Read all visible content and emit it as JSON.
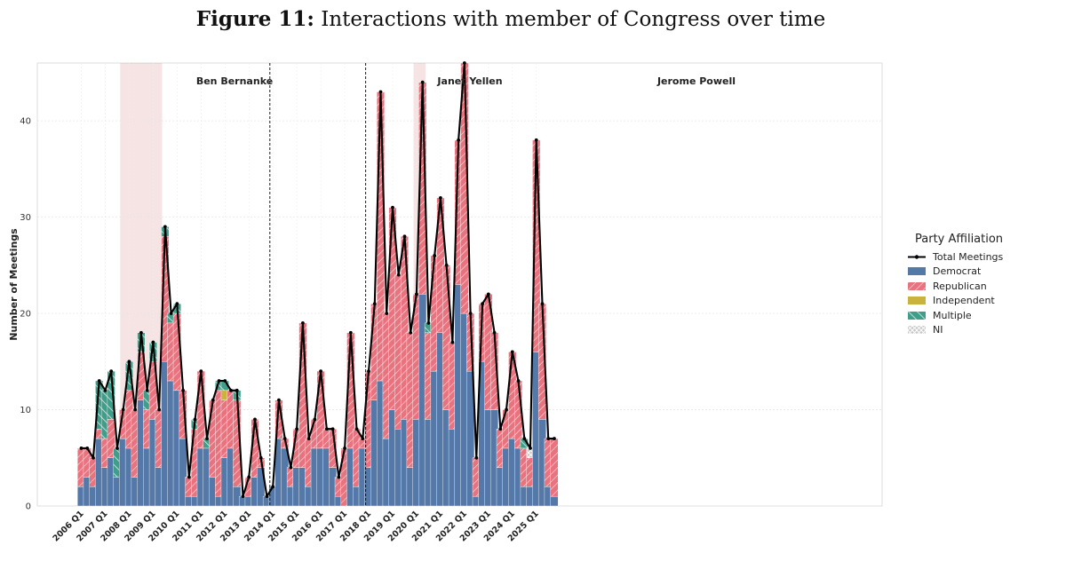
{
  "figure": {
    "label": "Figure 11:",
    "title": "Interactions with member of Congress over time"
  },
  "chart_data": {
    "type": "bar",
    "stacked": true,
    "ylabel": "Number of Meetings",
    "xlabel": "",
    "ylim": [
      0,
      46
    ],
    "yticks": [
      0,
      10,
      20,
      30,
      40
    ],
    "grid": true,
    "legend_position": "right",
    "x_tick_labels": [
      "2006 Q1",
      "2007 Q1",
      "2008 Q1",
      "2009 Q1",
      "2010 Q1",
      "2011 Q1",
      "2012 Q1",
      "2013 Q1",
      "2014 Q1",
      "2015 Q1",
      "2016 Q1",
      "2017 Q1",
      "2018 Q1",
      "2019 Q1",
      "2020 Q1",
      "2021 Q1",
      "2022 Q1",
      "2023 Q1",
      "2024 Q1",
      "2025 Q1"
    ],
    "first_quarter": "2006 Q1",
    "chairs": [
      {
        "name": "Ben Bernanke",
        "start": "2006 Q1"
      },
      {
        "name": "Janet Yellen",
        "start": "2014 Q1"
      },
      {
        "name": "Jerome Powell",
        "start": "2018 Q1"
      }
    ],
    "shaded_periods": [
      {
        "start": "2007 Q4",
        "end": "2009 Q2"
      },
      {
        "start": "2020 Q1",
        "end": "2020 Q2"
      }
    ],
    "series": [
      {
        "name": "Democrat",
        "color": "#5479a8",
        "values": [
          2,
          3,
          2,
          7,
          4,
          5,
          3,
          7,
          6,
          3,
          11,
          6,
          9,
          4,
          15,
          13,
          12,
          7,
          1,
          1,
          6,
          6,
          3,
          1,
          5,
          6,
          2,
          1,
          1,
          3,
          4,
          1,
          2,
          7,
          6,
          2,
          4,
          4,
          2,
          6,
          6,
          6,
          4,
          1,
          0,
          6,
          2,
          6,
          4,
          11,
          13,
          7,
          10,
          8,
          9,
          4,
          9,
          22,
          9,
          14,
          18,
          10,
          8,
          23,
          20,
          14,
          1,
          15,
          10,
          10,
          4,
          6,
          7,
          6,
          2,
          2,
          16,
          9,
          2,
          1
        ]
      },
      {
        "name": "Republican",
        "color": "#e8727e",
        "values": [
          4,
          3,
          3,
          1,
          3,
          4,
          0,
          3,
          6,
          7,
          5,
          4,
          6,
          6,
          13,
          6,
          8,
          5,
          2,
          7,
          8,
          0,
          8,
          11,
          6,
          6,
          9,
          0,
          2,
          6,
          1,
          0,
          0,
          4,
          1,
          2,
          4,
          15,
          5,
          3,
          8,
          2,
          4,
          2,
          6,
          12,
          6,
          1,
          10,
          10,
          30,
          13,
          21,
          16,
          19,
          14,
          13,
          22,
          9,
          12,
          14,
          15,
          9,
          15,
          26,
          6,
          4,
          6,
          12,
          8,
          4,
          4,
          9,
          7,
          4,
          3,
          22,
          12,
          5,
          6
        ]
      },
      {
        "name": "Independent",
        "color": "#c9b33e",
        "values": [
          0,
          0,
          0,
          0,
          0,
          0,
          0,
          0,
          0,
          0,
          0,
          0,
          0,
          0,
          0,
          0,
          0,
          0,
          0,
          0,
          0,
          0,
          0,
          0,
          1,
          0,
          0,
          0,
          0,
          0,
          0,
          0,
          0,
          0,
          0,
          0,
          0,
          0,
          0,
          0,
          0,
          0,
          0,
          0,
          0,
          0,
          0,
          0,
          0,
          0,
          0,
          0,
          0,
          0,
          0,
          0,
          0,
          0,
          0,
          0,
          0,
          0,
          0,
          0,
          0,
          0,
          0,
          0,
          0,
          0,
          0,
          0,
          0,
          0,
          0,
          0,
          0,
          0,
          0,
          0
        ]
      },
      {
        "name": "Multiple",
        "color": "#3f9e8a",
        "values": [
          0,
          0,
          0,
          5,
          5,
          5,
          3,
          0,
          3,
          0,
          2,
          2,
          2,
          0,
          1,
          1,
          1,
          0,
          0,
          1,
          0,
          1,
          0,
          1,
          1,
          0,
          1,
          0,
          0,
          0,
          0,
          0,
          0,
          0,
          0,
          0,
          0,
          0,
          0,
          0,
          0,
          0,
          0,
          0,
          0,
          0,
          0,
          0,
          0,
          0,
          0,
          0,
          0,
          0,
          0,
          0,
          0,
          0,
          1,
          0,
          0,
          0,
          0,
          0,
          0,
          0,
          0,
          0,
          0,
          0,
          0,
          0,
          0,
          0,
          1,
          0,
          0,
          0,
          0,
          0
        ]
      },
      {
        "name": "NI",
        "color": "#c8c8c8",
        "values": [
          0,
          0,
          0,
          0,
          0,
          0,
          0,
          0,
          0,
          0,
          0,
          0,
          0,
          0,
          0,
          0,
          0,
          0,
          0,
          0,
          0,
          0,
          0,
          0,
          0,
          0,
          0,
          0,
          0,
          0,
          0,
          0,
          0,
          0,
          0,
          0,
          0,
          0,
          0,
          0,
          0,
          0,
          0,
          0,
          0,
          0,
          0,
          0,
          0,
          0,
          0,
          0,
          0,
          0,
          0,
          0,
          0,
          0,
          0,
          0,
          0,
          0,
          0,
          0,
          0,
          0,
          0,
          0,
          0,
          0,
          0,
          0,
          0,
          0,
          0,
          1,
          0,
          0,
          0,
          0
        ]
      }
    ],
    "line": {
      "name": "Total Meetings",
      "color": "#000000",
      "values": [
        6,
        6,
        5,
        13,
        12,
        14,
        6,
        10,
        15,
        10,
        18,
        12,
        17,
        10,
        29,
        20,
        21,
        12,
        3,
        9,
        14,
        7,
        11,
        13,
        13,
        12,
        12,
        1,
        3,
        9,
        5,
        1,
        2,
        11,
        7,
        4,
        8,
        19,
        7,
        9,
        14,
        8,
        8,
        3,
        6,
        18,
        8,
        7,
        14,
        21,
        43,
        20,
        31,
        24,
        28,
        18,
        22,
        44,
        19,
        26,
        32,
        25,
        17,
        38,
        46,
        20,
        5,
        21,
        22,
        18,
        8,
        10,
        16,
        13,
        7,
        6,
        38,
        21,
        7,
        7
      ]
    }
  }
}
